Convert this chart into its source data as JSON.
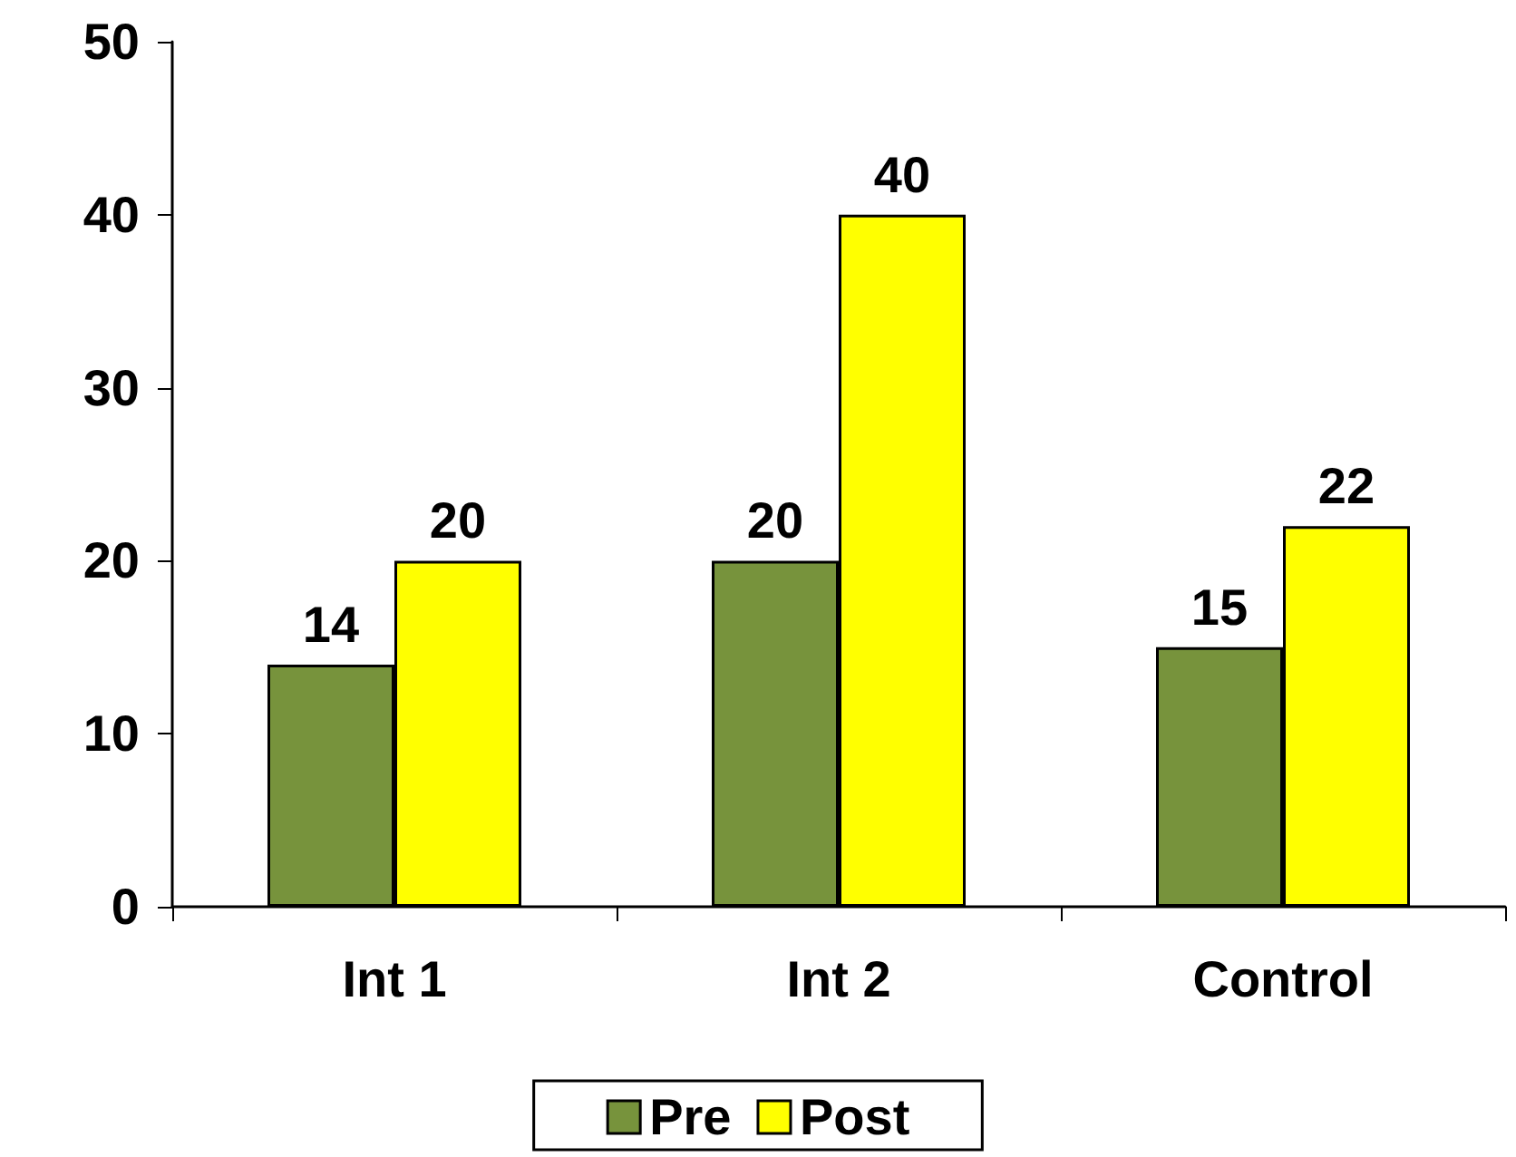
{
  "chart_data": {
    "type": "bar",
    "categories": [
      "Int 1",
      "Int 2",
      "Control"
    ],
    "series": [
      {
        "name": "Pre",
        "color": "#77933c",
        "values": [
          14,
          20,
          15
        ]
      },
      {
        "name": "Post",
        "color": "#ffff00",
        "values": [
          20,
          40,
          22
        ]
      }
    ],
    "ylim": [
      0,
      50
    ],
    "yticks": [
      0,
      10,
      20,
      30,
      40,
      50
    ],
    "grid": false,
    "legend": "bottom",
    "data_labels": true
  }
}
